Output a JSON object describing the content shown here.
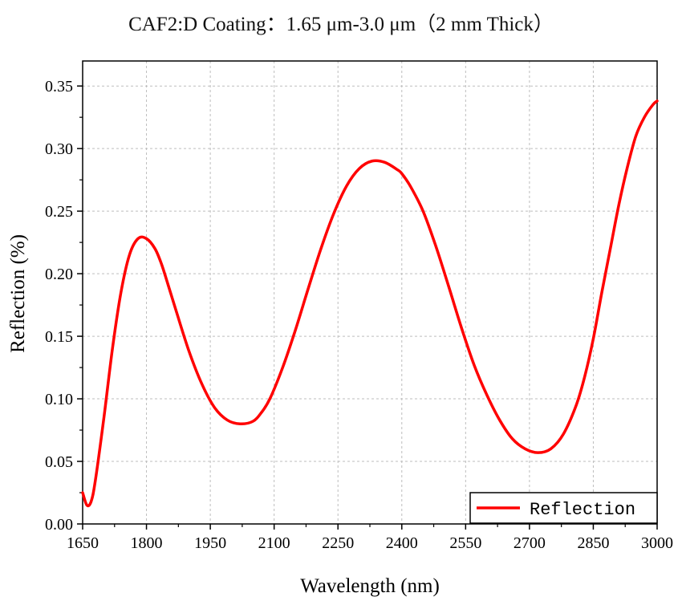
{
  "chart_data": {
    "type": "line",
    "title": "CAF2:D Coating：1.65 μm-3.0 μm（2 mm Thick）",
    "xlabel": "Wavelength (nm)",
    "ylabel": "Reflection (%)",
    "xlim": [
      1650,
      3000
    ],
    "ylim": [
      0.0,
      0.37
    ],
    "xticks": [
      1650,
      1800,
      1950,
      2100,
      2250,
      2400,
      2550,
      2700,
      2850,
      3000
    ],
    "yticks": [
      "0.00",
      "0.05",
      "0.10",
      "0.15",
      "0.20",
      "0.25",
      "0.30",
      "0.35"
    ],
    "grid": true,
    "legend_position": "bottom-right",
    "series": [
      {
        "name": "Reflection",
        "color": "#ff0000",
        "x": [
          1650,
          1660,
          1670,
          1680,
          1700,
          1720,
          1740,
          1760,
          1780,
          1800,
          1820,
          1835,
          1850,
          1870,
          1900,
          1930,
          1960,
          1990,
          2020,
          2050,
          2070,
          2090,
          2120,
          2150,
          2180,
          2210,
          2240,
          2270,
          2300,
          2330,
          2360,
          2390,
          2400,
          2420,
          2450,
          2480,
          2510,
          2540,
          2570,
          2600,
          2630,
          2660,
          2690,
          2720,
          2750,
          2780,
          2810,
          2830,
          2850,
          2870,
          2890,
          2910,
          2930,
          2950,
          2970,
          2990,
          3000
        ],
        "y": [
          0.025,
          0.015,
          0.018,
          0.035,
          0.085,
          0.14,
          0.185,
          0.215,
          0.228,
          0.228,
          0.22,
          0.208,
          0.192,
          0.17,
          0.138,
          0.112,
          0.093,
          0.083,
          0.08,
          0.082,
          0.089,
          0.1,
          0.125,
          0.155,
          0.188,
          0.22,
          0.248,
          0.27,
          0.284,
          0.29,
          0.289,
          0.283,
          0.28,
          0.27,
          0.25,
          0.222,
          0.19,
          0.157,
          0.127,
          0.103,
          0.083,
          0.068,
          0.06,
          0.057,
          0.06,
          0.072,
          0.095,
          0.118,
          0.148,
          0.185,
          0.22,
          0.255,
          0.285,
          0.31,
          0.325,
          0.335,
          0.338
        ]
      }
    ]
  }
}
